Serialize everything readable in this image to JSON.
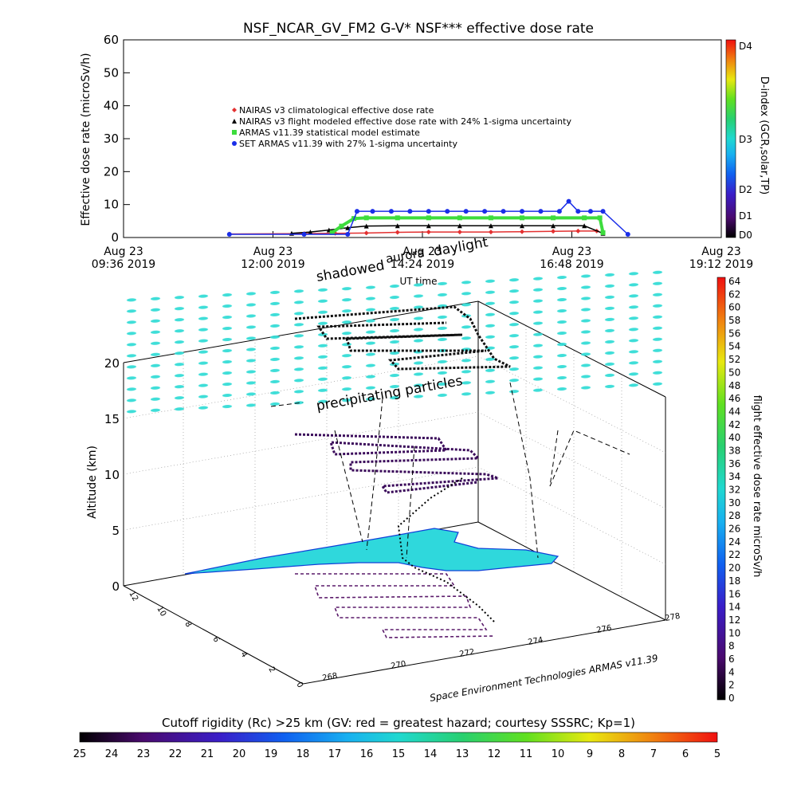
{
  "chart_data": [
    {
      "type": "scatter",
      "title": "NSF_NCAR_GV_FM2 G-V* NSF*** effective dose rate",
      "ylabel": "Effective dose rate (microSv/h)",
      "xlabel": "UT time",
      "ylim": [
        0,
        60
      ],
      "yticks": [
        "0",
        "10",
        "20",
        "30",
        "40",
        "50",
        "60"
      ],
      "xticks": [
        {
          "label1": "Aug 23",
          "label2": "09:36 2019"
        },
        {
          "label1": "Aug 23",
          "label2": "12:00 2019"
        },
        {
          "label1": "Aug 23",
          "label2": "14:24 2019"
        },
        {
          "label1": "Aug 23",
          "label2": "16:48 2019"
        },
        {
          "label1": "Aug 23",
          "label2": "19:12 2019"
        }
      ],
      "xlim_hours": [
        9.6,
        19.2
      ],
      "legend": [
        {
          "text": "NAIRAS v3 climatological effective dose rate",
          "color": "#e33030",
          "marker": "diamond"
        },
        {
          "text": "NAIRAS v3 flight modeled effective dose rate with 24% 1-sigma uncertainty",
          "color": "#000000",
          "marker": "triangle"
        },
        {
          "text": "ARMAS v11.39 statistical model estimate",
          "color": "#3ddc3d",
          "marker": "square"
        },
        {
          "text": "SET ARMAS v11.39 with 27% 1-sigma uncertainty",
          "color": "#1a2ee8",
          "marker": "circle"
        }
      ],
      "series": [
        {
          "name": "NAIRAS v3 climatological effective dose rate",
          "x": [
            11.3,
            12.5,
            13.0,
            13.5,
            14.0,
            14.5,
            15.0,
            15.5,
            16.0,
            16.5,
            16.9,
            17.2
          ],
          "y": [
            0.1,
            0.2,
            0.3,
            0.4,
            0.6,
            0.7,
            0.7,
            0.7,
            0.8,
            0.9,
            1.0,
            1.0
          ]
        },
        {
          "name": "NAIRAS v3 flight modeled effective dose rate with 24% 1-sigma uncertainty",
          "x": [
            12.3,
            12.6,
            12.9,
            13.2,
            13.5,
            14.0,
            14.5,
            15.0,
            15.5,
            16.0,
            16.5,
            17.0,
            17.3
          ],
          "y": [
            0.3,
            0.7,
            1.3,
            2.0,
            2.5,
            2.6,
            2.6,
            2.6,
            2.6,
            2.6,
            2.6,
            2.6,
            0.3
          ]
        },
        {
          "name": "ARMAS v11.39 statistical model estimate",
          "x": [
            12.95,
            13.1,
            13.3,
            13.5,
            14.0,
            14.5,
            15.0,
            15.5,
            16.0,
            16.5,
            17.0,
            17.25,
            17.3
          ],
          "y": [
            0.5,
            2.5,
            4.8,
            5.0,
            5.0,
            5.0,
            5.0,
            5.0,
            5.0,
            5.0,
            5.0,
            5.0,
            0.5
          ]
        },
        {
          "name": "SET ARMAS v11.39 with 27% 1-sigma uncertainty",
          "x": [
            11.3,
            12.5,
            13.2,
            13.35,
            13.6,
            13.9,
            14.2,
            14.5,
            14.8,
            15.1,
            15.4,
            15.7,
            16.0,
            16.3,
            16.6,
            16.75,
            16.9,
            17.1,
            17.3,
            17.7
          ],
          "y": [
            0.0,
            0.0,
            0.0,
            7.0,
            7.0,
            7.0,
            7.0,
            7.0,
            7.0,
            7.0,
            7.0,
            7.0,
            7.0,
            7.0,
            7.0,
            10.0,
            7.0,
            7.0,
            7.0,
            0.0
          ]
        }
      ],
      "colorbar": {
        "label": "D-index (GCR,solar,TP)",
        "ticks": [
          "D0",
          "D1",
          "D2",
          "D3",
          "D4"
        ]
      }
    },
    {
      "type": "scatter",
      "title": "flight effective dose rate microSv/h",
      "zlabel": "Altitude (km)",
      "zticks": [
        "0",
        "5",
        "10",
        "15",
        "20"
      ],
      "zlim": [
        0,
        20
      ],
      "xticks": [
        "268",
        "270",
        "272",
        "274",
        "276",
        "278"
      ],
      "yticks": [
        "0",
        "2",
        "4",
        "6",
        "8",
        "10",
        "12"
      ],
      "annotations": [
        "shadowed",
        "aurora",
        "daylight",
        "precipitating particles"
      ],
      "credit": "Space Environment Technologies ARMAS v11.39",
      "colorbar": {
        "label": "flight effective dose rate microSv/h",
        "ticks": [
          "0",
          "2",
          "4",
          "6",
          "8",
          "10",
          "12",
          "14",
          "16",
          "18",
          "20",
          "22",
          "24",
          "26",
          "28",
          "30",
          "32",
          "34",
          "36",
          "38",
          "40",
          "42",
          "44",
          "46",
          "48",
          "50",
          "52",
          "54",
          "56",
          "58",
          "60",
          "62",
          "64"
        ]
      }
    },
    {
      "type": "heatmap",
      "title": "Cutoff rigidity (Rc) >25 km (GV: red = greatest hazard; courtesy SSSRC; Kp=1)",
      "ticks": [
        "25",
        "24",
        "23",
        "22",
        "21",
        "20",
        "19",
        "18",
        "17",
        "16",
        "15",
        "14",
        "13",
        "12",
        "11",
        "10",
        "9",
        "8",
        "7",
        "6",
        "5"
      ]
    }
  ]
}
